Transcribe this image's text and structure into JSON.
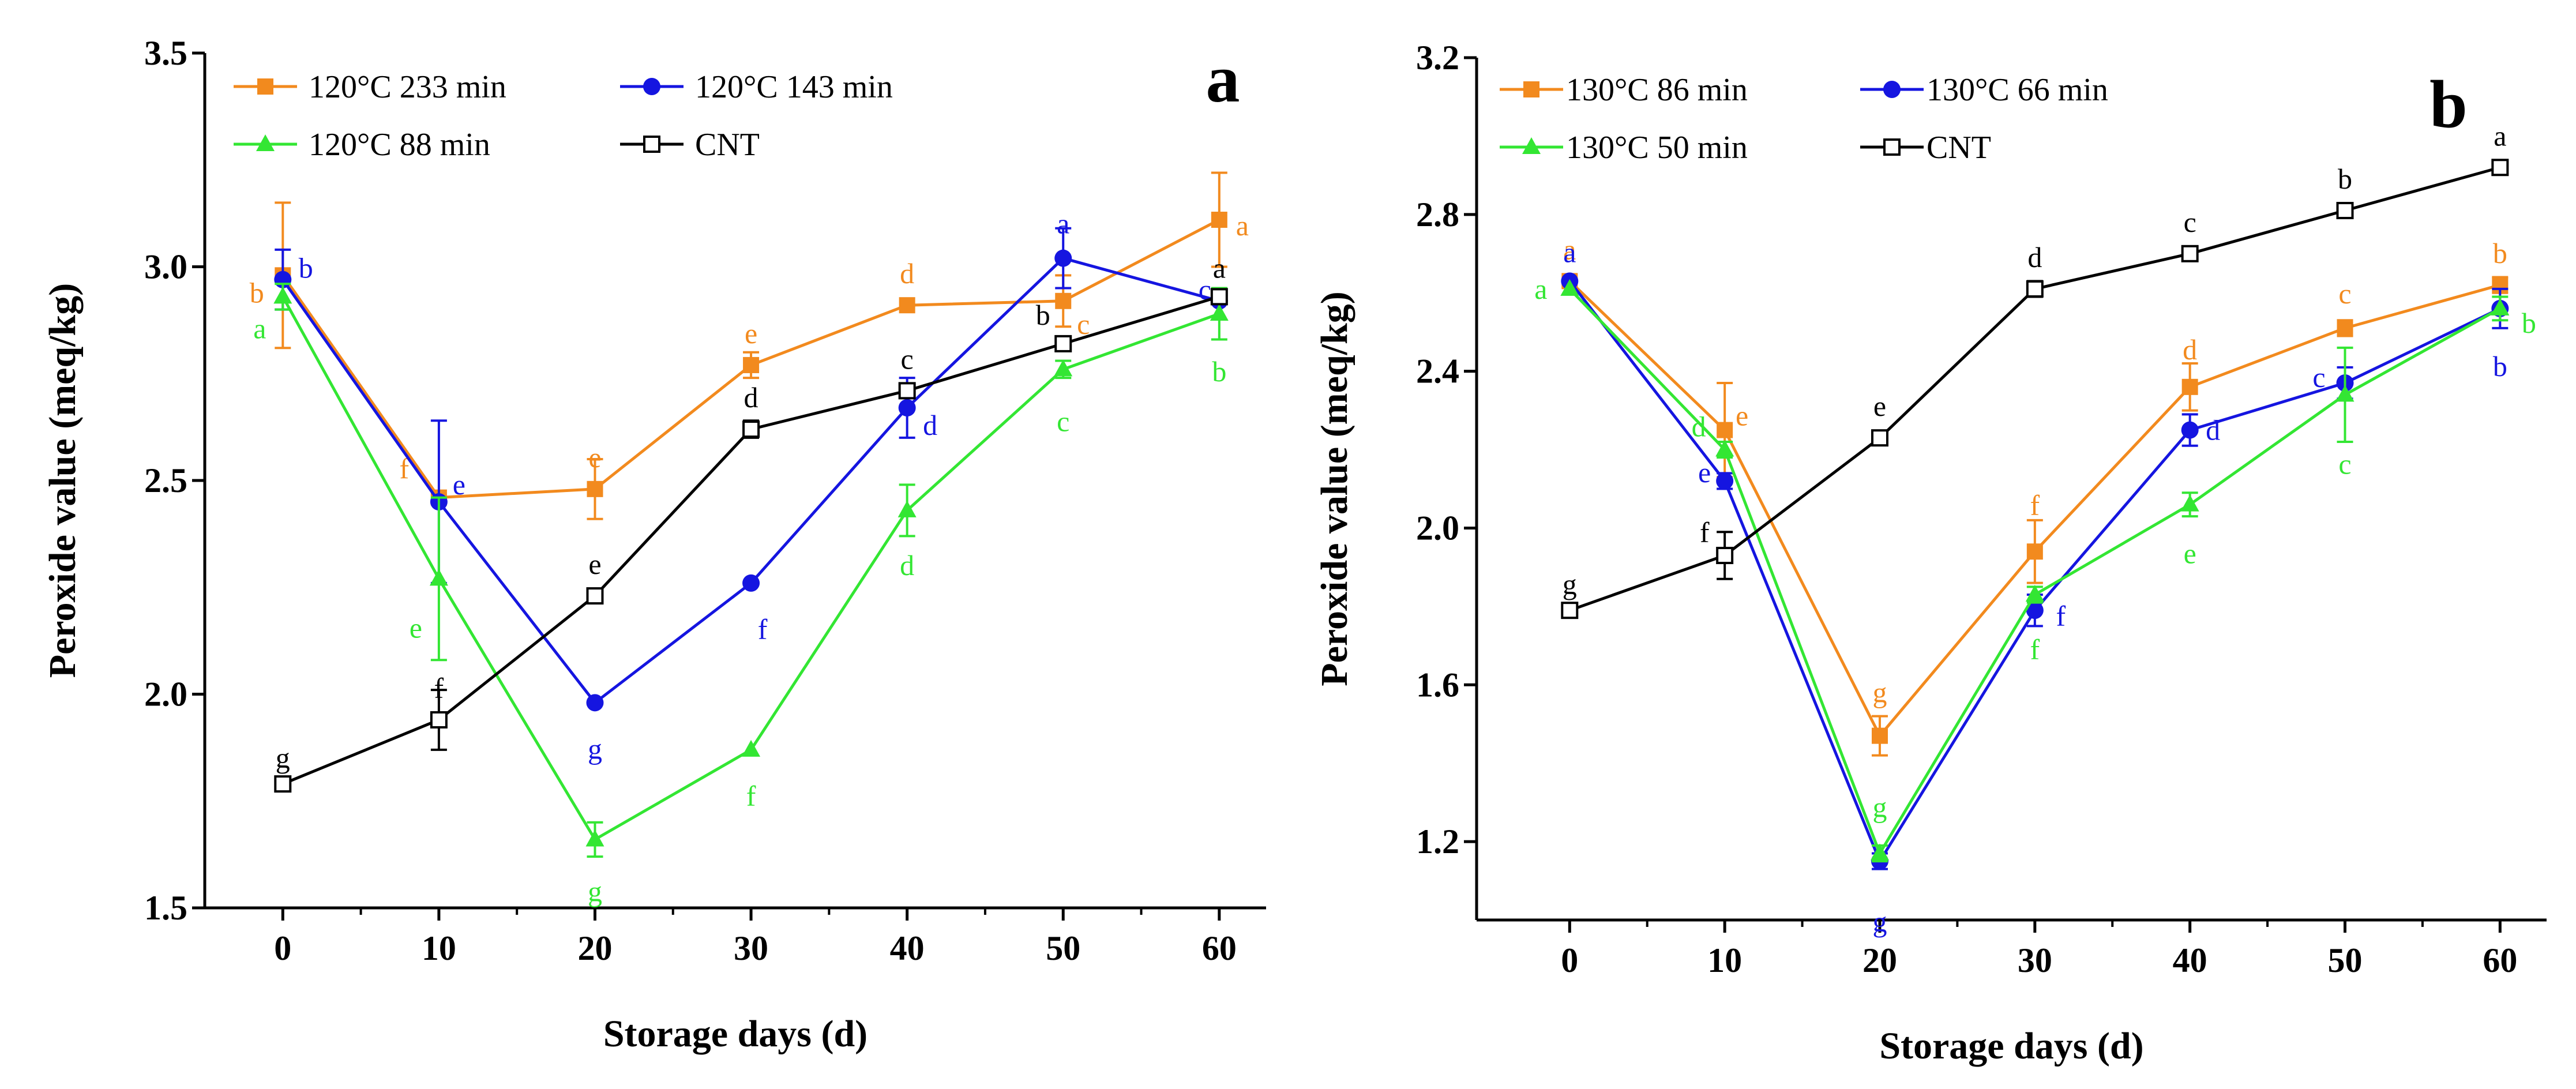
{
  "chart_data": [
    {
      "type": "line",
      "panel_label": "a",
      "xlabel": "Storage days (d)",
      "ylabel": "Peroxide value (meq/kg)",
      "x": [
        0,
        10,
        20,
        30,
        40,
        50,
        60
      ],
      "xticks": [
        "0",
        "10",
        "20",
        "30",
        "40",
        "50",
        "60"
      ],
      "xlim": [
        -5,
        63
      ],
      "ylim": [
        1.5,
        3.5
      ],
      "yticks": [
        "1.5",
        "2.0",
        "2.5",
        "3.0",
        "3.5"
      ],
      "legend_position": "top-left",
      "series": [
        {
          "name": "120°C 233 min",
          "color": "#f28a1e",
          "marker": "square",
          "values": [
            2.98,
            2.46,
            2.48,
            2.77,
            2.91,
            2.92,
            3.11
          ],
          "errors": [
            0.17,
            0.01,
            0.07,
            0.03,
            0.01,
            0.06,
            0.11
          ],
          "labels": [
            "b",
            "f",
            "e",
            "e",
            "d",
            "c",
            "a"
          ]
        },
        {
          "name": "120°C 143 min",
          "color": "#1515e0",
          "marker": "circle",
          "values": [
            2.97,
            2.45,
            1.98,
            2.26,
            2.67,
            3.02,
            2.92
          ],
          "errors": [
            0.07,
            0.19,
            0.01,
            0.01,
            0.07,
            0.07,
            0.01
          ],
          "labels": [
            "b",
            "e",
            "g",
            "f",
            "d",
            "a",
            "c"
          ]
        },
        {
          "name": "120°C 88 min",
          "color": "#33e633",
          "marker": "triangle",
          "values": [
            2.93,
            2.27,
            1.66,
            1.87,
            2.43,
            2.76,
            2.89
          ],
          "errors": [
            0.03,
            0.19,
            0.04,
            0.01,
            0.06,
            0.02,
            0.06
          ],
          "labels": [
            "a",
            "e",
            "g",
            "f",
            "d",
            "c",
            "b"
          ]
        },
        {
          "name": "CNT",
          "color": "#000000",
          "marker": "open-square",
          "values": [
            1.79,
            1.94,
            2.23,
            2.62,
            2.71,
            2.82,
            2.93
          ],
          "errors": [
            0.01,
            0.07,
            0.01,
            0.02,
            0.01,
            0.01,
            0.01
          ],
          "labels": [
            "g",
            "f",
            "e",
            "d",
            "c",
            "b",
            "a"
          ]
        }
      ]
    },
    {
      "type": "line",
      "panel_label": "b",
      "xlabel": "Storage days (d)",
      "ylabel": "Peroxide value (meq/kg)",
      "x": [
        0,
        10,
        20,
        30,
        40,
        50,
        60
      ],
      "xticks": [
        "0",
        "10",
        "20",
        "30",
        "40",
        "50",
        "60"
      ],
      "xlim": [
        -6,
        63
      ],
      "ylim": [
        1.0,
        3.2
      ],
      "yticks": [
        "1.2",
        "1.6",
        "2.0",
        "2.4",
        "2.8",
        "3.2"
      ],
      "legend_position": "top-left",
      "series": [
        {
          "name": "130°C 86 min",
          "color": "#f28a1e",
          "marker": "square",
          "values": [
            2.63,
            2.25,
            1.47,
            1.94,
            2.36,
            2.51,
            2.62
          ],
          "errors": [
            0.01,
            0.12,
            0.05,
            0.08,
            0.06,
            0.02,
            0.02
          ],
          "labels": [
            "a",
            "e",
            "g",
            "f",
            "d",
            "c",
            "b"
          ]
        },
        {
          "name": "130°C 66 min",
          "color": "#1515e0",
          "marker": "circle",
          "values": [
            2.63,
            2.12,
            1.15,
            1.79,
            2.25,
            2.37,
            2.56
          ],
          "errors": [
            0.01,
            0.02,
            0.02,
            0.04,
            0.04,
            0.04,
            0.05
          ],
          "labels": [
            "a",
            "e",
            "g",
            "f",
            "d",
            "c",
            "b"
          ]
        },
        {
          "name": "130°C 50 min",
          "color": "#33e633",
          "marker": "triangle",
          "values": [
            2.61,
            2.2,
            1.17,
            1.83,
            2.06,
            2.34,
            2.56
          ],
          "errors": [
            0.01,
            0.02,
            0.02,
            0.02,
            0.03,
            0.12,
            0.03
          ],
          "labels": [
            "a",
            "d",
            "g",
            "f",
            "e",
            "c",
            "b"
          ]
        },
        {
          "name": "CNT",
          "color": "#000000",
          "marker": "open-square",
          "values": [
            1.79,
            1.93,
            2.23,
            2.61,
            2.7,
            2.81,
            2.92
          ],
          "errors": [
            0.01,
            0.06,
            0.01,
            0.02,
            0.01,
            0.01,
            0.01
          ],
          "labels": [
            "g",
            "f",
            "e",
            "d",
            "c",
            "b",
            "a"
          ]
        }
      ]
    }
  ]
}
